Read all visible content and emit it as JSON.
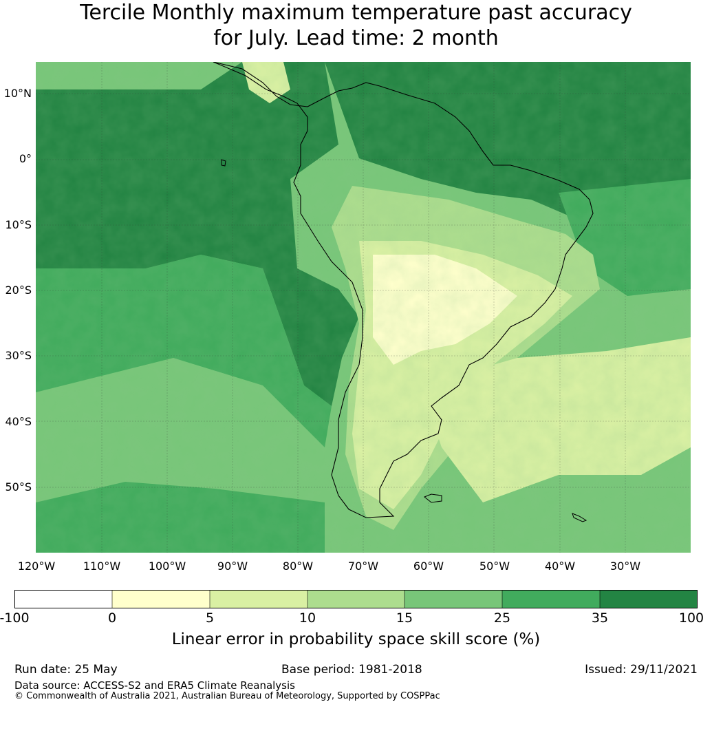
{
  "title": {
    "line1": "Tercile Monthly maximum temperature past accuracy",
    "line2": "for July. Lead time: 2 month"
  },
  "map": {
    "region": "South America",
    "latitude_labels": [
      "10°N",
      "0°",
      "10°S",
      "20°S",
      "30°S",
      "40°S",
      "50°S"
    ],
    "longitude_labels": [
      "120°W",
      "110°W",
      "100°W",
      "90°W",
      "80°W",
      "70°W",
      "60°W",
      "50°W",
      "40°W",
      "30°W"
    ]
  },
  "colorbar": {
    "ticks": [
      "-100",
      "0",
      "5",
      "10",
      "15",
      "25",
      "35",
      "100"
    ],
    "colors": [
      "#ffffff",
      "#ffffcc",
      "#d9f0a3",
      "#addd8e",
      "#78c679",
      "#41ab5d",
      "#238443"
    ],
    "label": "Linear error in probability space skill score (%)"
  },
  "footer": {
    "run_date": "Run date: 25 May",
    "base_period": "Base period: 1981-2018",
    "issued": "Issued: 29/11/2021",
    "data_source": "Data source: ACCESS-S2 and ERA5 Climate Reanalysis",
    "copyright": "© Commonwealth of Australia 2021, Australian Bureau of Meteorology, Supported by COSPPac"
  }
}
